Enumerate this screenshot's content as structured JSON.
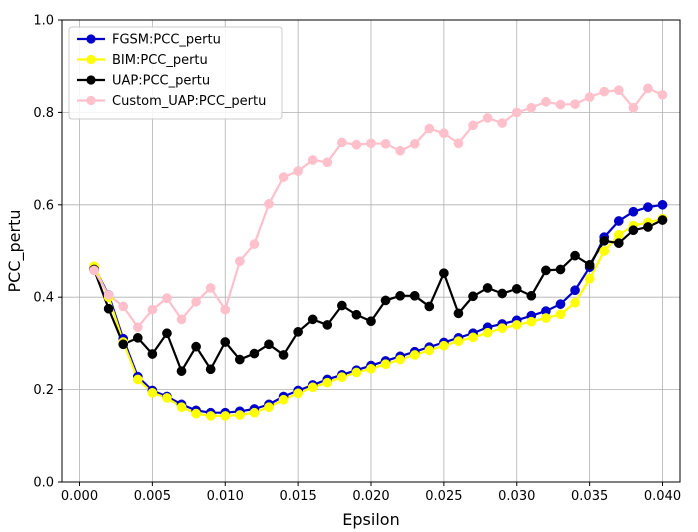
{
  "chart_data": {
    "type": "line",
    "xlabel": "Epsilon",
    "ylabel": "PCC_pertu",
    "xlim": [
      -0.0012,
      0.0412
    ],
    "ylim": [
      0.0,
      1.0
    ],
    "xticks": [
      0.0,
      0.005,
      0.01,
      0.015,
      0.02,
      0.025,
      0.03,
      0.035,
      0.04
    ],
    "xtick_labels": [
      "0.000",
      "0.005",
      "0.010",
      "0.015",
      "0.020",
      "0.025",
      "0.030",
      "0.035",
      "0.040"
    ],
    "yticks": [
      0.0,
      0.2,
      0.4,
      0.6,
      0.8,
      1.0
    ],
    "ytick_labels": [
      "0.0",
      "0.2",
      "0.4",
      "0.6",
      "0.8",
      "1.0"
    ],
    "grid": true,
    "legend_position": "upper-left",
    "x": [
      0.001,
      0.002,
      0.003,
      0.004,
      0.005,
      0.006,
      0.007,
      0.008,
      0.009,
      0.01,
      0.011,
      0.012,
      0.013,
      0.014,
      0.015,
      0.016,
      0.017,
      0.018,
      0.019,
      0.02,
      0.021,
      0.022,
      0.023,
      0.024,
      0.025,
      0.026,
      0.027,
      0.028,
      0.029,
      0.03,
      0.031,
      0.032,
      0.033,
      0.034,
      0.035,
      0.036,
      0.037,
      0.038,
      0.039,
      0.04
    ],
    "series": [
      {
        "name": "FGSM:PCC_pertu",
        "color": "#0000cc",
        "values": [
          0.465,
          0.405,
          0.31,
          0.228,
          0.198,
          0.185,
          0.168,
          0.155,
          0.15,
          0.15,
          0.153,
          0.158,
          0.168,
          0.185,
          0.198,
          0.21,
          0.222,
          0.232,
          0.242,
          0.252,
          0.262,
          0.272,
          0.282,
          0.292,
          0.302,
          0.312,
          0.322,
          0.335,
          0.342,
          0.35,
          0.36,
          0.37,
          0.385,
          0.415,
          0.465,
          0.53,
          0.565,
          0.585,
          0.595,
          0.6
        ]
      },
      {
        "name": "BIM:PCC_pertu",
        "color": "#ffff00",
        "values": [
          0.467,
          0.4,
          0.303,
          0.222,
          0.193,
          0.182,
          0.162,
          0.148,
          0.143,
          0.143,
          0.145,
          0.15,
          0.162,
          0.178,
          0.192,
          0.205,
          0.215,
          0.227,
          0.237,
          0.245,
          0.255,
          0.265,
          0.275,
          0.285,
          0.295,
          0.305,
          0.313,
          0.323,
          0.333,
          0.34,
          0.347,
          0.355,
          0.363,
          0.388,
          0.44,
          0.5,
          0.535,
          0.555,
          0.562,
          0.57
        ]
      },
      {
        "name": "UAP:PCC_pertu",
        "color": "#000000",
        "values": [
          0.46,
          0.375,
          0.298,
          0.312,
          0.277,
          0.322,
          0.24,
          0.293,
          0.244,
          0.303,
          0.265,
          0.278,
          0.298,
          0.275,
          0.325,
          0.352,
          0.34,
          0.382,
          0.362,
          0.348,
          0.393,
          0.403,
          0.403,
          0.38,
          0.452,
          0.365,
          0.402,
          0.42,
          0.408,
          0.418,
          0.403,
          0.458,
          0.46,
          0.49,
          0.47,
          0.522,
          0.517,
          0.545,
          0.552,
          0.567
        ]
      },
      {
        "name": "Custom_UAP:PCC_pertu",
        "color": "#ffc0cb",
        "values": [
          0.458,
          0.405,
          0.38,
          0.335,
          0.373,
          0.398,
          0.352,
          0.39,
          0.42,
          0.373,
          0.478,
          0.515,
          0.602,
          0.66,
          0.673,
          0.697,
          0.692,
          0.735,
          0.73,
          0.733,
          0.732,
          0.717,
          0.732,
          0.765,
          0.755,
          0.733,
          0.772,
          0.788,
          0.777,
          0.8,
          0.81,
          0.823,
          0.817,
          0.818,
          0.833,
          0.845,
          0.848,
          0.81,
          0.852,
          0.838
        ]
      }
    ]
  }
}
